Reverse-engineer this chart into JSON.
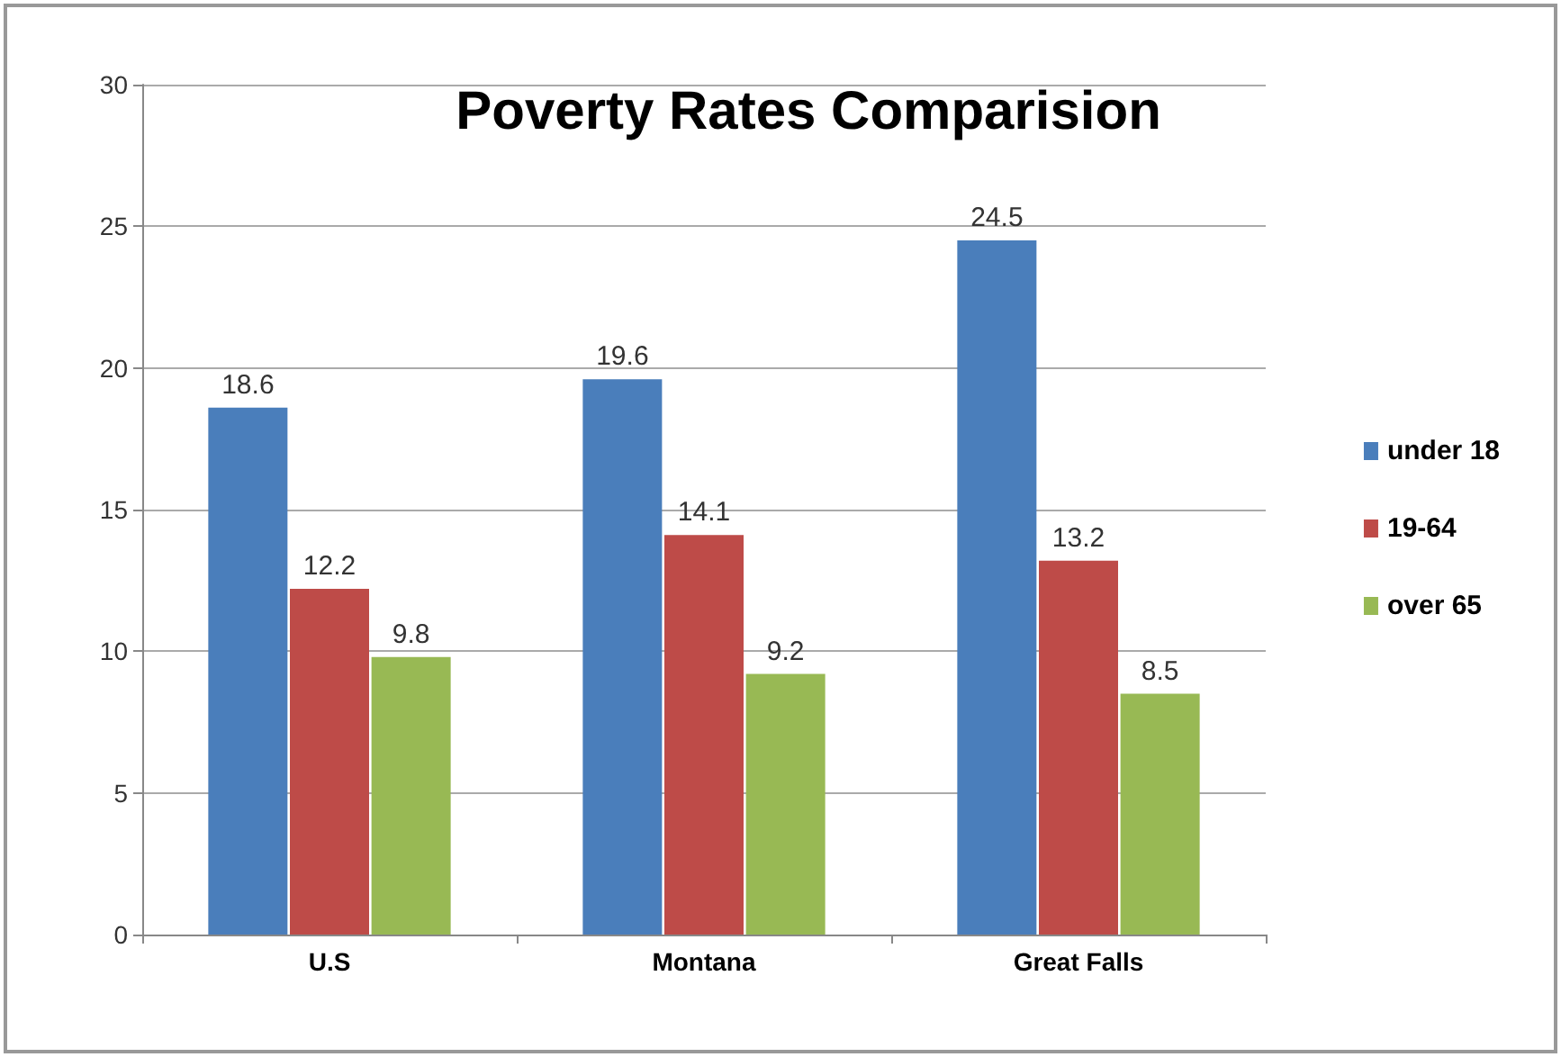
{
  "chart_data": {
    "type": "bar",
    "title": "Poverty Rates Comparision",
    "categories": [
      "U.S",
      "Montana",
      "Great Falls"
    ],
    "series": [
      {
        "name": "under 18",
        "color": "#4a7ebb",
        "values": [
          18.6,
          19.6,
          24.5
        ]
      },
      {
        "name": "19-64",
        "color": "#be4b48",
        "values": [
          12.2,
          14.1,
          13.2
        ]
      },
      {
        "name": "over 65",
        "color": "#98b954",
        "values": [
          9.8,
          9.2,
          8.5
        ]
      }
    ],
    "ylim": [
      0,
      30
    ],
    "yticks": [
      0,
      5,
      10,
      15,
      20,
      25,
      30
    ],
    "grid": "y",
    "legend": "right",
    "data_labels": true
  }
}
